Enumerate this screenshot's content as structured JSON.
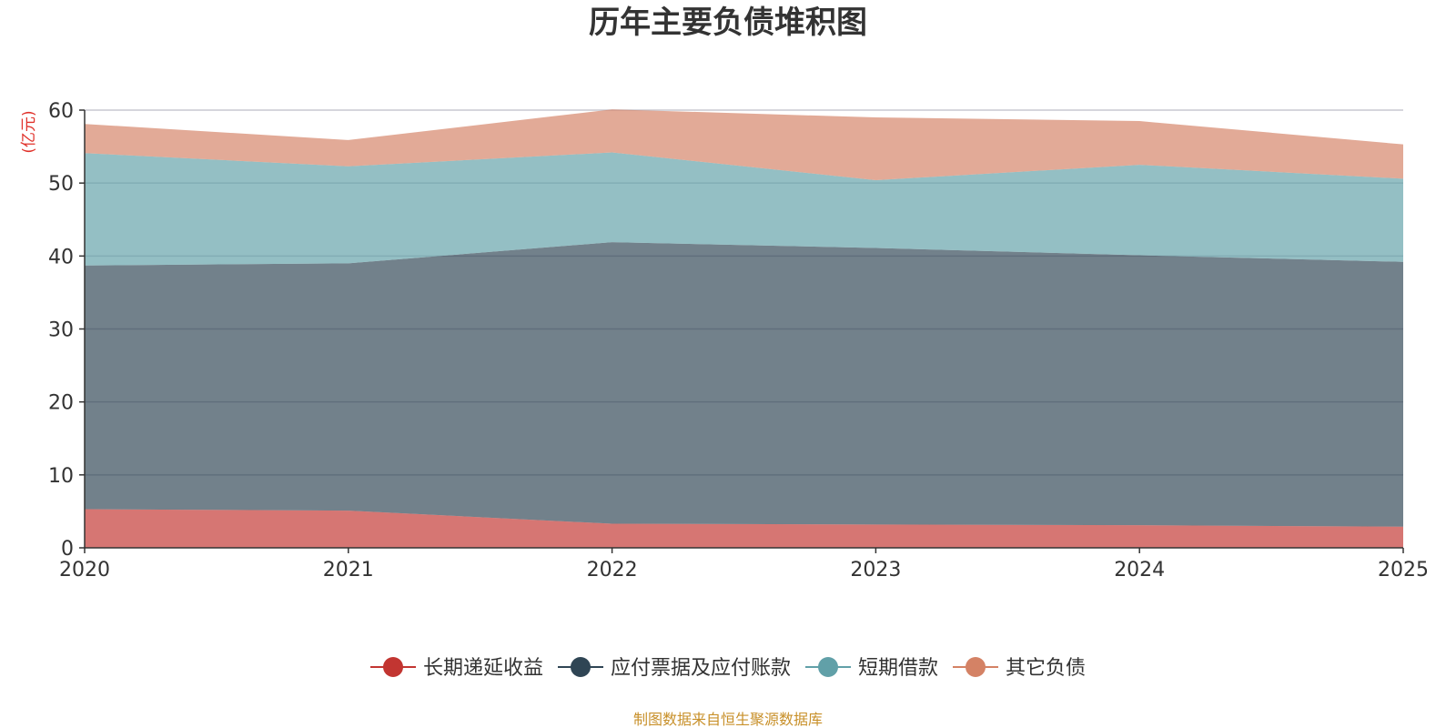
{
  "chart_data": {
    "type": "area",
    "stacked": true,
    "title": "历年主要负债堆积图",
    "y_unit": "(亿元)",
    "x": [
      "2020",
      "2021",
      "2022",
      "2023",
      "2024",
      "2025"
    ],
    "ylim": [
      0,
      60
    ],
    "yticks": [
      0,
      10,
      20,
      30,
      40,
      50,
      60
    ],
    "grid": true,
    "legend_position": "bottom",
    "series": [
      {
        "name": "长期递延收益",
        "color": "#c23531",
        "values": [
          5.3,
          5.1,
          3.3,
          3.2,
          3.1,
          2.9
        ]
      },
      {
        "name": "应付票据及应付账款",
        "color": "#2f4554",
        "values": [
          33.4,
          33.9,
          38.6,
          37.9,
          37.0,
          36.3
        ]
      },
      {
        "name": "短期借款",
        "color": "#61a0a8",
        "values": [
          15.4,
          13.3,
          12.3,
          9.3,
          12.4,
          11.4
        ]
      },
      {
        "name": "其它负债",
        "color": "#d48265",
        "values": [
          4.0,
          3.6,
          5.9,
          8.6,
          6.0,
          4.7
        ]
      }
    ],
    "source": "制图数据来自恒生聚源数据库"
  }
}
